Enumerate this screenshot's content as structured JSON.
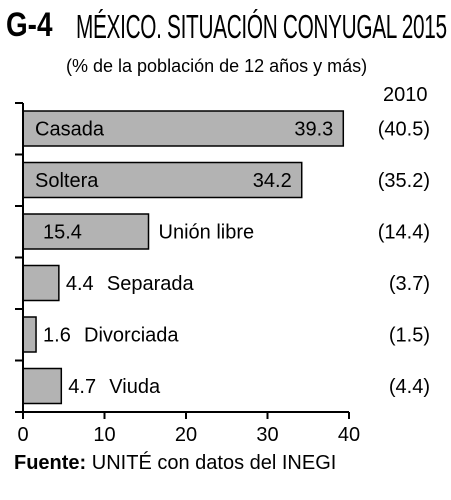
{
  "header": {
    "code": "G-4",
    "title": "MÉXICO. SITUACIÓN CONYUGAL 2015",
    "subtitle": "(% de la población de 12 años y más)",
    "compare_year": "2010"
  },
  "source": {
    "label": "Fuente:",
    "text": "UNITÉ con datos del INEGI"
  },
  "chart_data": {
    "type": "bar",
    "orientation": "horizontal",
    "categories": [
      "Casada",
      "Soltera",
      "Unión libre",
      "Separada",
      "Divorciada",
      "Viuda"
    ],
    "series": [
      {
        "values": [
          39.3,
          34.2,
          15.4,
          4.4,
          1.6,
          4.7
        ]
      }
    ],
    "value_labels": [
      "39.3",
      "34.2",
      "15.4",
      "4.4",
      "1.6",
      "4.7"
    ],
    "comparison": {
      "year": "2010",
      "labels": [
        "(40.5)",
        "(35.2)",
        "(14.4)",
        "(3.7)",
        "(1.5)",
        "(4.4)"
      ],
      "values": [
        40.5,
        35.2,
        14.4,
        3.7,
        1.5,
        4.4
      ]
    },
    "xlim": [
      0,
      40
    ],
    "xticks": [
      0,
      10,
      20,
      30,
      40
    ],
    "xlabel": "",
    "ylabel": "",
    "grid": false,
    "colors": {
      "bar": "#b3b3b3",
      "stroke": "#000000"
    }
  }
}
